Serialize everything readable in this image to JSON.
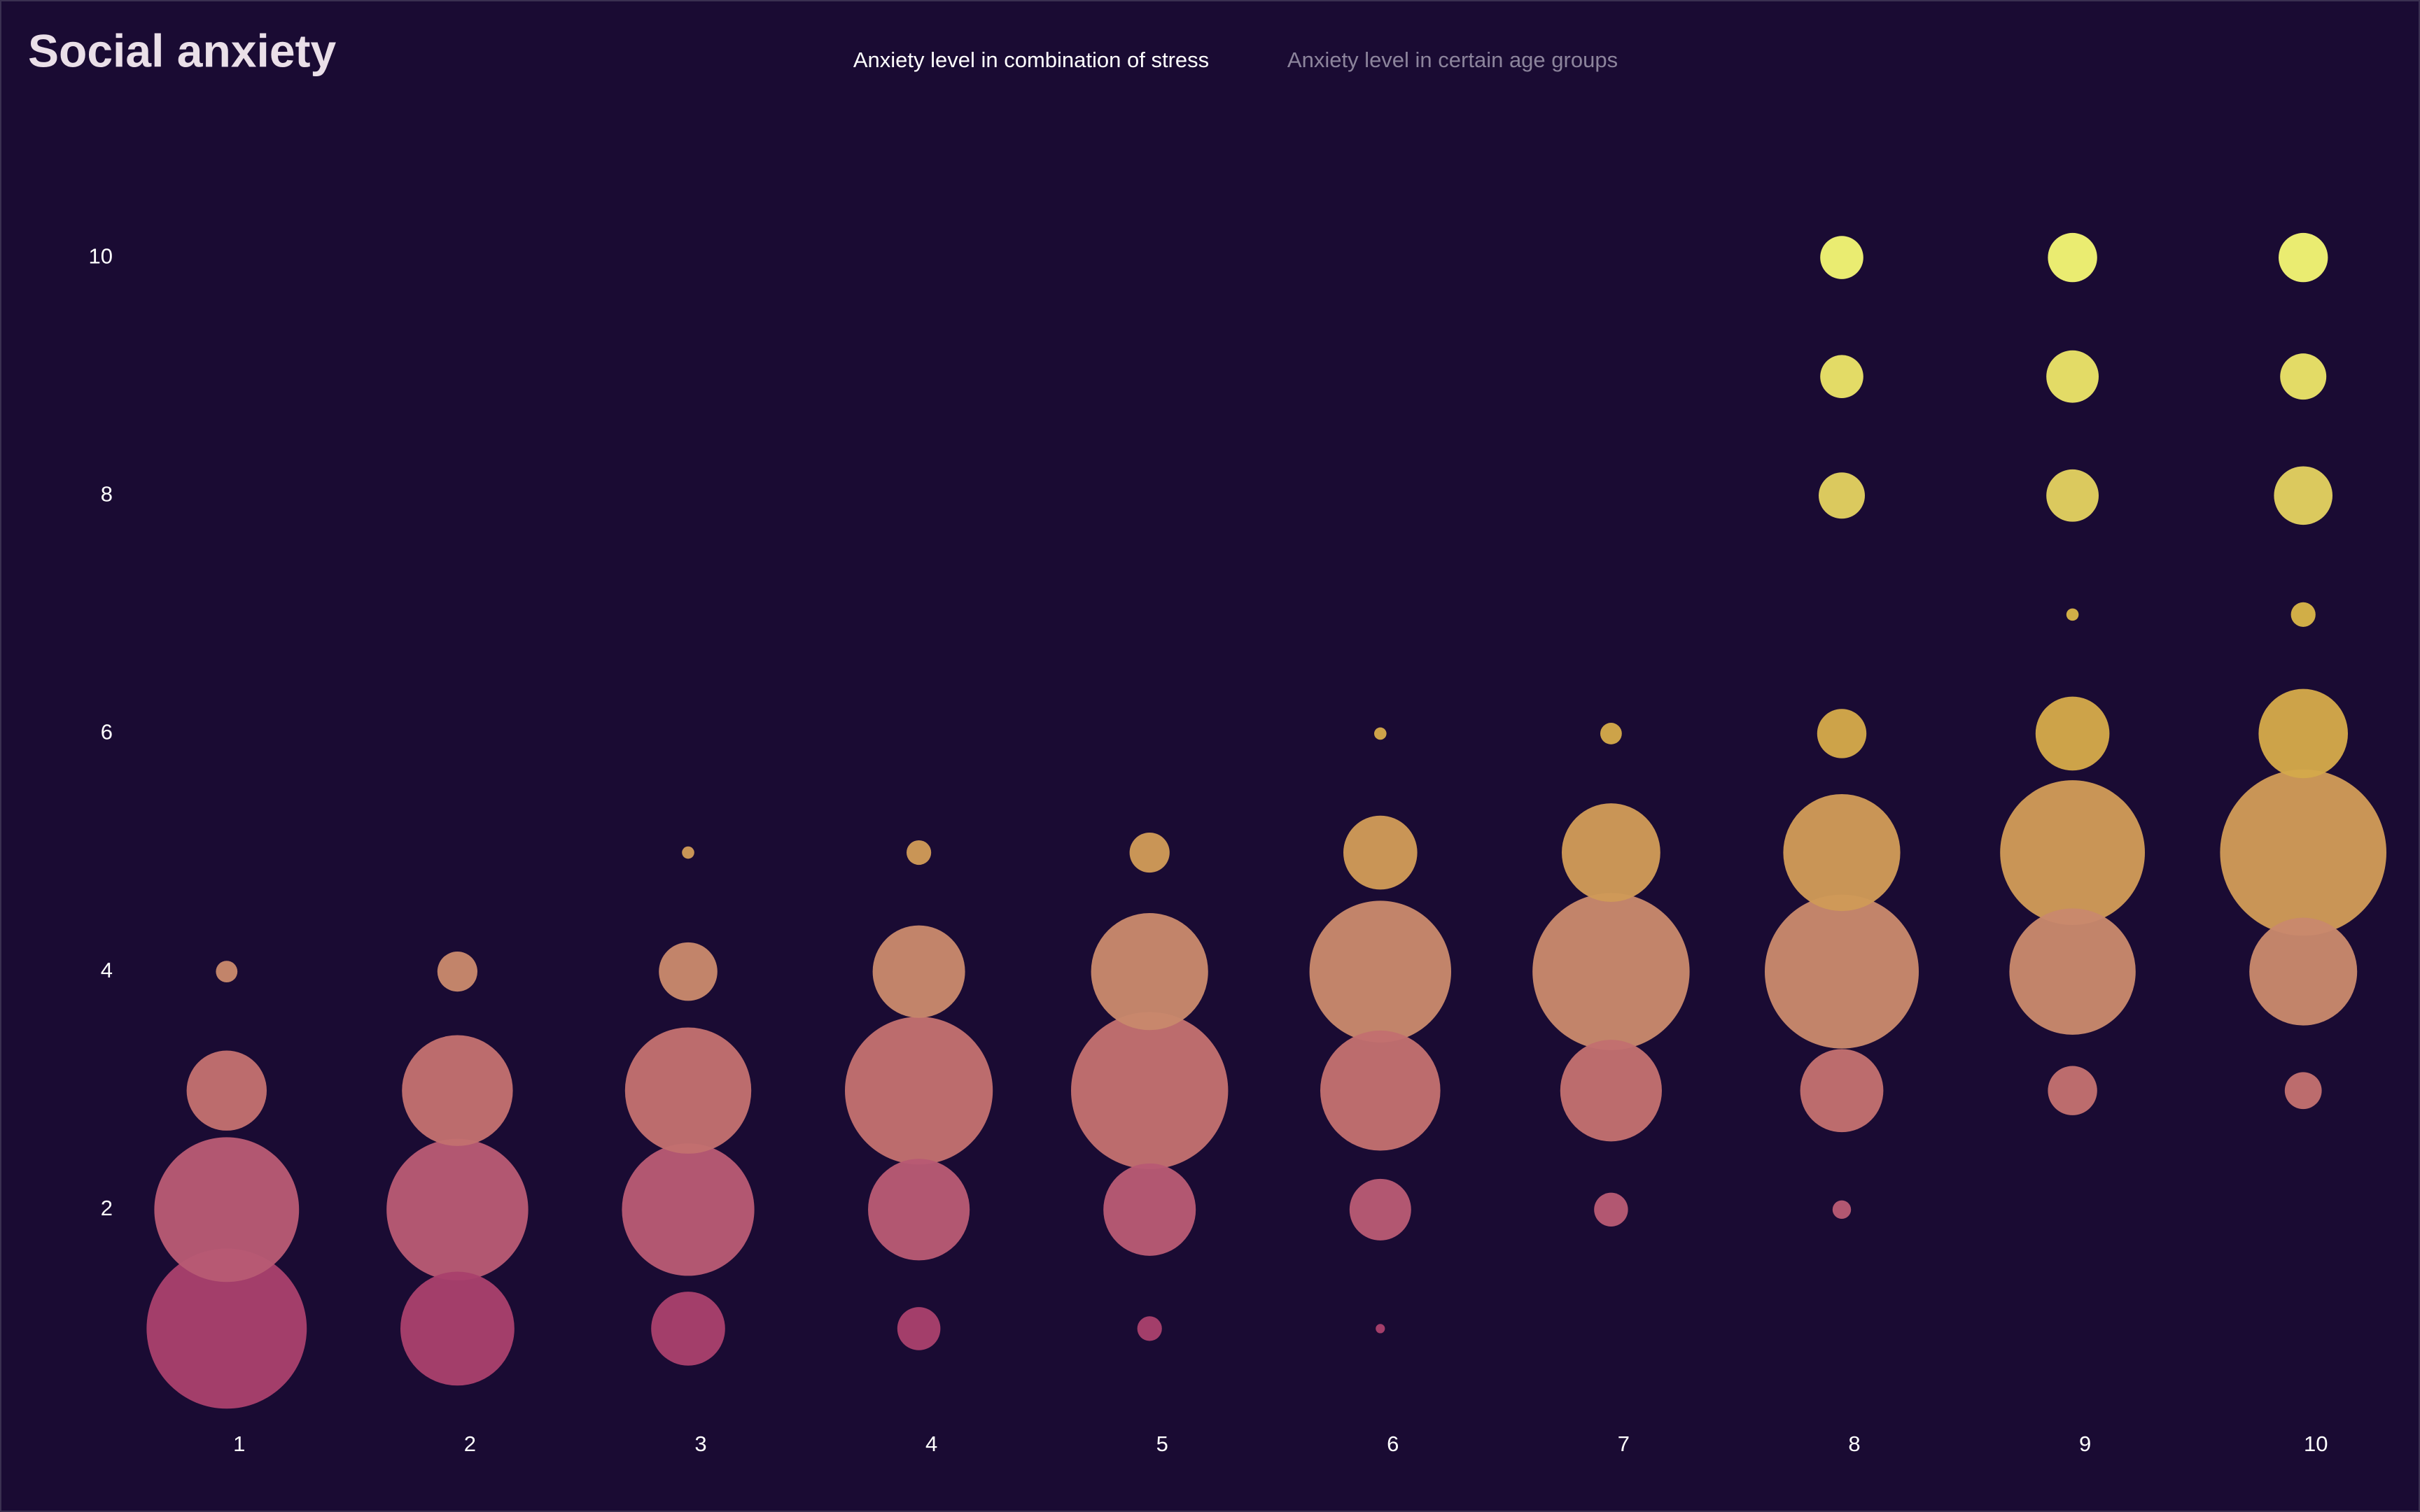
{
  "tabs": [
    {
      "label": "Anxiety level in combination of stress",
      "active": true
    },
    {
      "label": "Anxiety level in certain age groups",
      "active": false
    }
  ],
  "chart_data": {
    "type": "scatter",
    "title": "Social anxiety",
    "x": [
      1,
      1,
      1,
      1,
      2,
      2,
      2,
      2,
      3,
      3,
      3,
      3,
      3,
      4,
      4,
      4,
      4,
      4,
      5,
      5,
      5,
      5,
      5,
      6,
      6,
      6,
      6,
      6,
      6,
      7,
      7,
      7,
      7,
      7,
      8,
      8,
      8,
      8,
      8,
      8,
      8,
      8,
      9,
      9,
      9,
      9,
      9,
      9,
      9,
      9,
      10,
      10,
      10,
      10,
      10,
      10,
      10,
      10
    ],
    "y": [
      1,
      2,
      3,
      4,
      1,
      2,
      3,
      4,
      1,
      2,
      3,
      4,
      5,
      1,
      2,
      3,
      4,
      5,
      1,
      2,
      3,
      4,
      5,
      1,
      2,
      3,
      4,
      5,
      6,
      2,
      3,
      4,
      5,
      6,
      2,
      3,
      4,
      5,
      6,
      8,
      9,
      10,
      3,
      4,
      5,
      6,
      7,
      8,
      9,
      10,
      3,
      4,
      5,
      6,
      7,
      8,
      9,
      10
    ],
    "sizes": [
      52,
      47,
      26,
      7,
      37,
      46,
      36,
      13,
      24,
      43,
      41,
      19,
      4,
      14,
      33,
      48,
      30,
      8,
      8,
      30,
      51,
      38,
      13,
      3,
      20,
      39,
      46,
      24,
      4,
      11,
      33,
      51,
      32,
      7,
      6,
      27,
      50,
      38,
      16,
      15,
      14,
      14,
      16,
      41,
      47,
      24,
      4,
      17,
      17,
      16,
      12,
      35,
      54,
      29,
      8,
      19,
      15,
      16
    ],
    "xlim": [
      0.5,
      10.5
    ],
    "ylim": [
      0,
      11
    ],
    "xticks": [
      1,
      2,
      3,
      4,
      5,
      6,
      7,
      8,
      9,
      10
    ],
    "yticks": [
      2,
      4,
      6,
      8,
      10
    ],
    "color_by_y": [
      "#a8406c",
      "#b85a74",
      "#c27070",
      "#c8886c",
      "#d09a58",
      "#d4a84a",
      "#d8b448",
      "#e2d060",
      "#eae268",
      "#f2f474"
    ]
  }
}
